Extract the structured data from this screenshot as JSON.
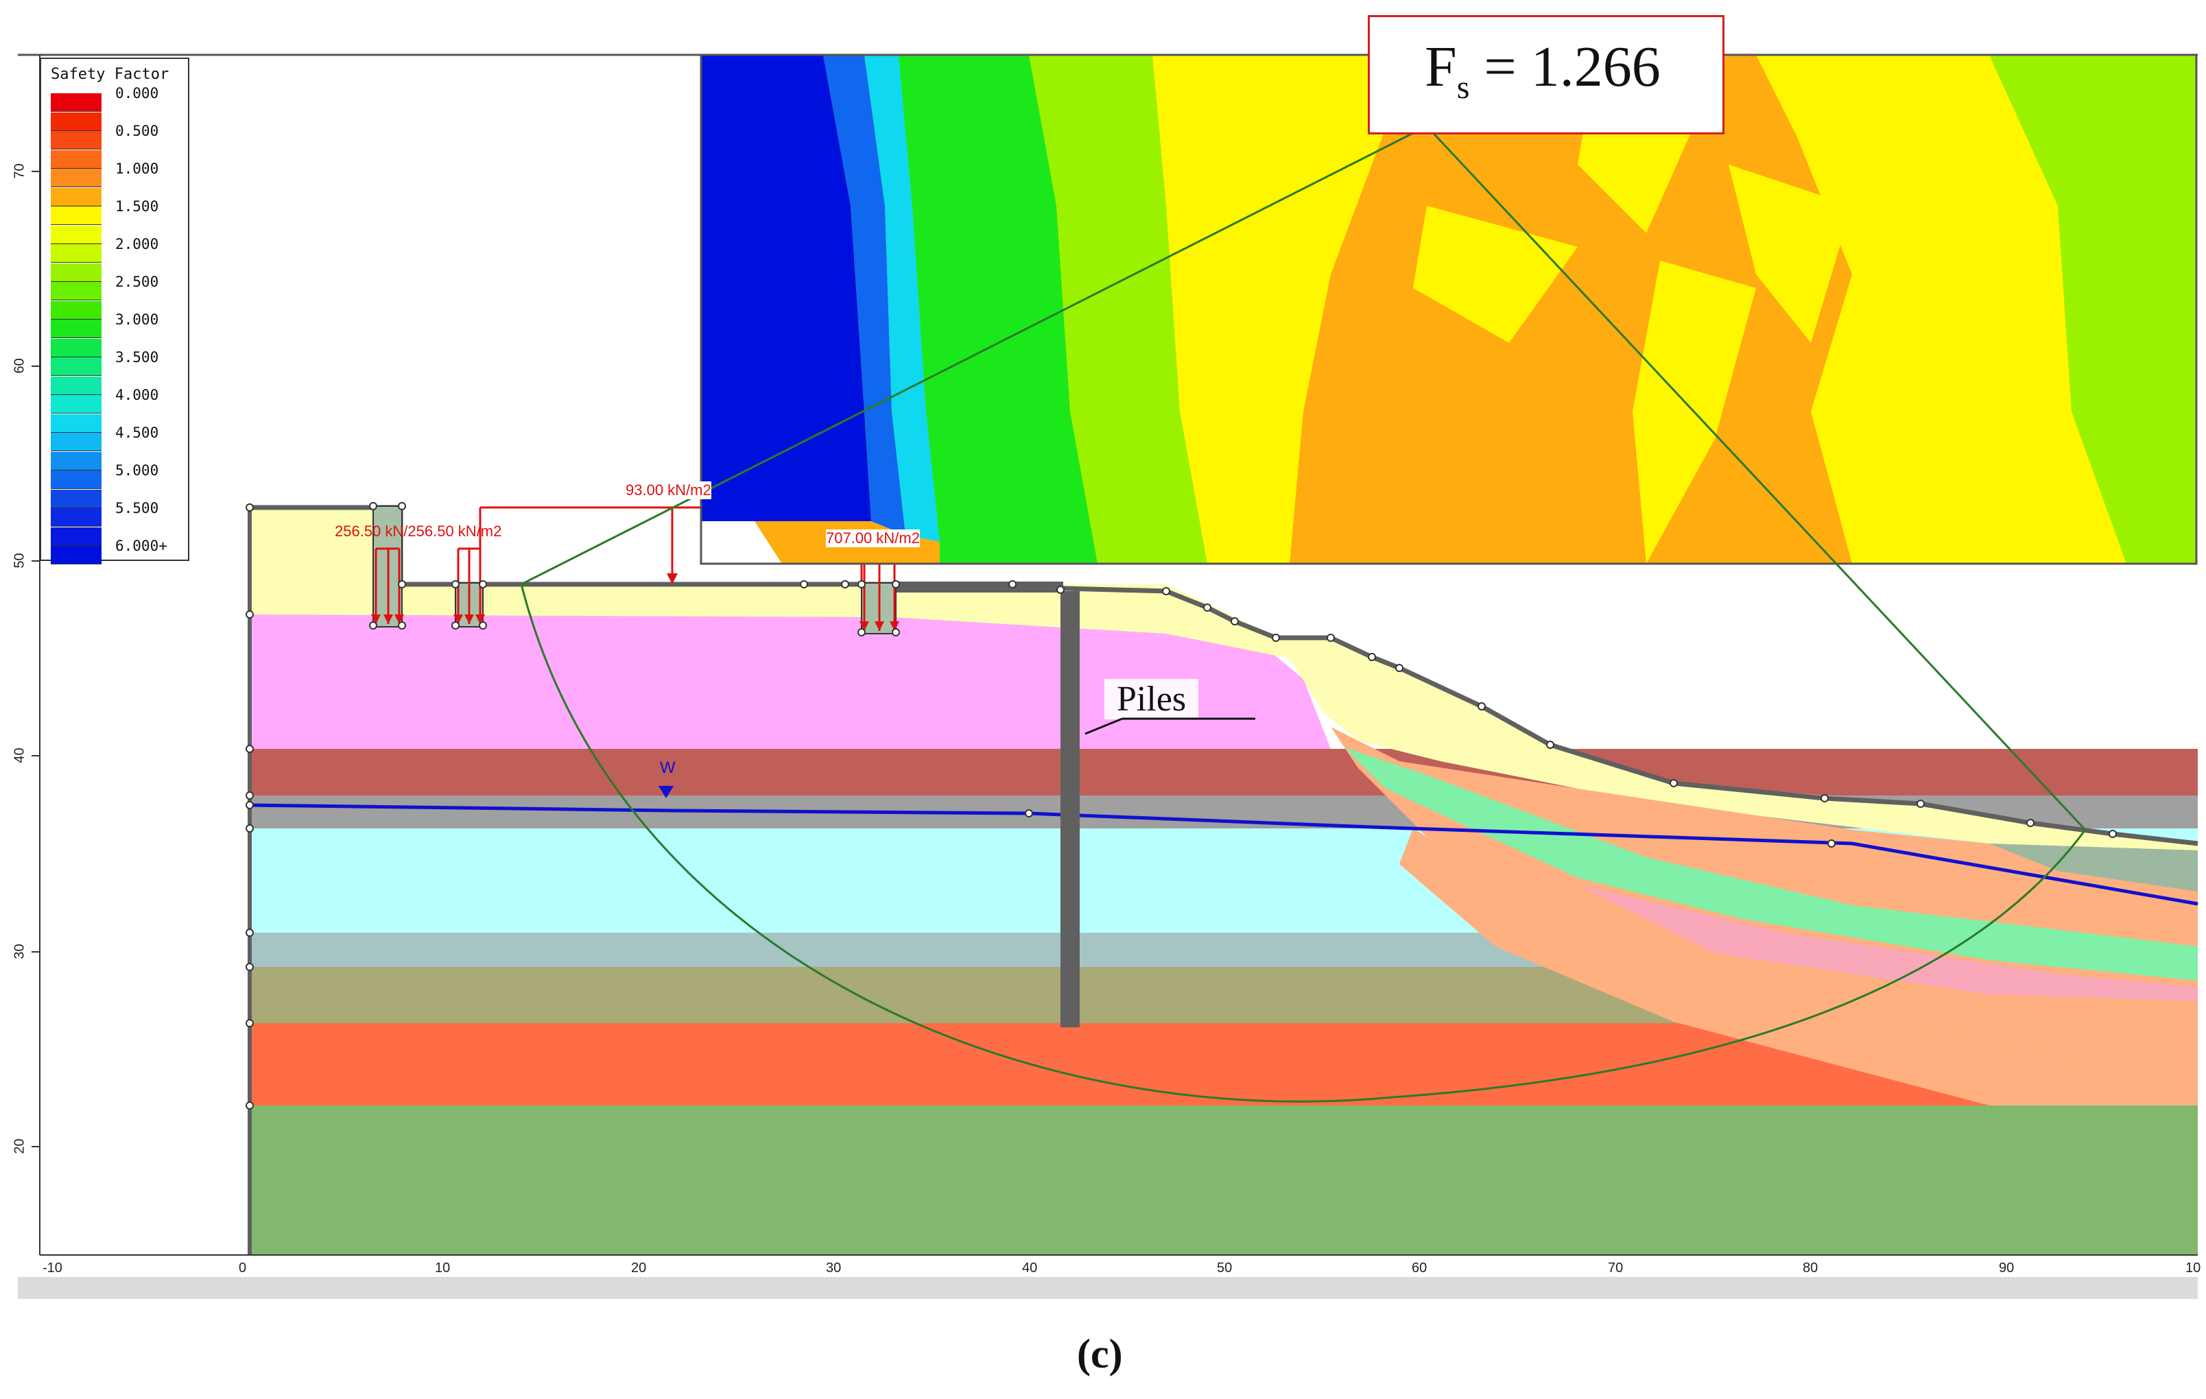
{
  "legend": {
    "title": "Safety Factor",
    "entries": [
      {
        "label": "0.000",
        "color": "#e8000b"
      },
      {
        "label": "",
        "color": "#f22a00"
      },
      {
        "label": "0.500",
        "color": "#f74a10"
      },
      {
        "label": "",
        "color": "#fb6a16"
      },
      {
        "label": "1.000",
        "color": "#fd8c1e"
      },
      {
        "label": "",
        "color": "#ffac10"
      },
      {
        "label": "1.500",
        "color": "#fff700"
      },
      {
        "label": "",
        "color": "#eeff00"
      },
      {
        "label": "2.000",
        "color": "#c8fa00"
      },
      {
        "label": "",
        "color": "#9af200"
      },
      {
        "label": "2.500",
        "color": "#6af000"
      },
      {
        "label": "",
        "color": "#3fea00"
      },
      {
        "label": "3.000",
        "color": "#1be81a"
      },
      {
        "label": "",
        "color": "#10e84a"
      },
      {
        "label": "3.500",
        "color": "#10e878"
      },
      {
        "label": "",
        "color": "#10e8a8"
      },
      {
        "label": "4.000",
        "color": "#10e8d0"
      },
      {
        "label": "",
        "color": "#10d8f0"
      },
      {
        "label": "4.500",
        "color": "#10b8f4"
      },
      {
        "label": "",
        "color": "#1090f0"
      },
      {
        "label": "5.000",
        "color": "#1068ee"
      },
      {
        "label": "",
        "color": "#1048e8"
      },
      {
        "label": "5.500",
        "color": "#0c2ae4"
      },
      {
        "label": "",
        "color": "#0818e0"
      },
      {
        "label": "6.000+",
        "color": "#0010dc"
      }
    ]
  },
  "fs_box": {
    "prefix": "F",
    "sub": "s",
    "value": " = 1.266"
  },
  "loads": {
    "strip_load": "93.00 kN/m2",
    "left_loads": "256.50 kN/256.50 kN/m2",
    "right_load": "707.00 kN/m2"
  },
  "water_label": "W",
  "piles_label": "Piles",
  "caption": "(c)",
  "x_axis_ticks": [
    "-10",
    "0",
    "10",
    "20",
    "30",
    "40",
    "50",
    "60",
    "70",
    "80",
    "90",
    "10"
  ],
  "y_axis_ticks": [
    "70",
    "60",
    "50",
    "40",
    "30",
    "20"
  ],
  "colors": {
    "yellow_fill": "#fdfdb4",
    "pink_fill": "#ffaaff",
    "brown_fill": "#bf5f58",
    "gray_fill": "#a0a0a0",
    "cyan_fill": "#b8ffff",
    "grayblue_fill": "#a6c4c4",
    "olive_fill": "#aaa978",
    "red_fill": "#ff6d47",
    "green_fill": "#82b86e",
    "peach_fill": "#ffb080",
    "mint_fill": "#80f0a8",
    "water_line": "#1010d0",
    "slip_circle": "#2a7a2a",
    "load_red": "#e01010"
  }
}
